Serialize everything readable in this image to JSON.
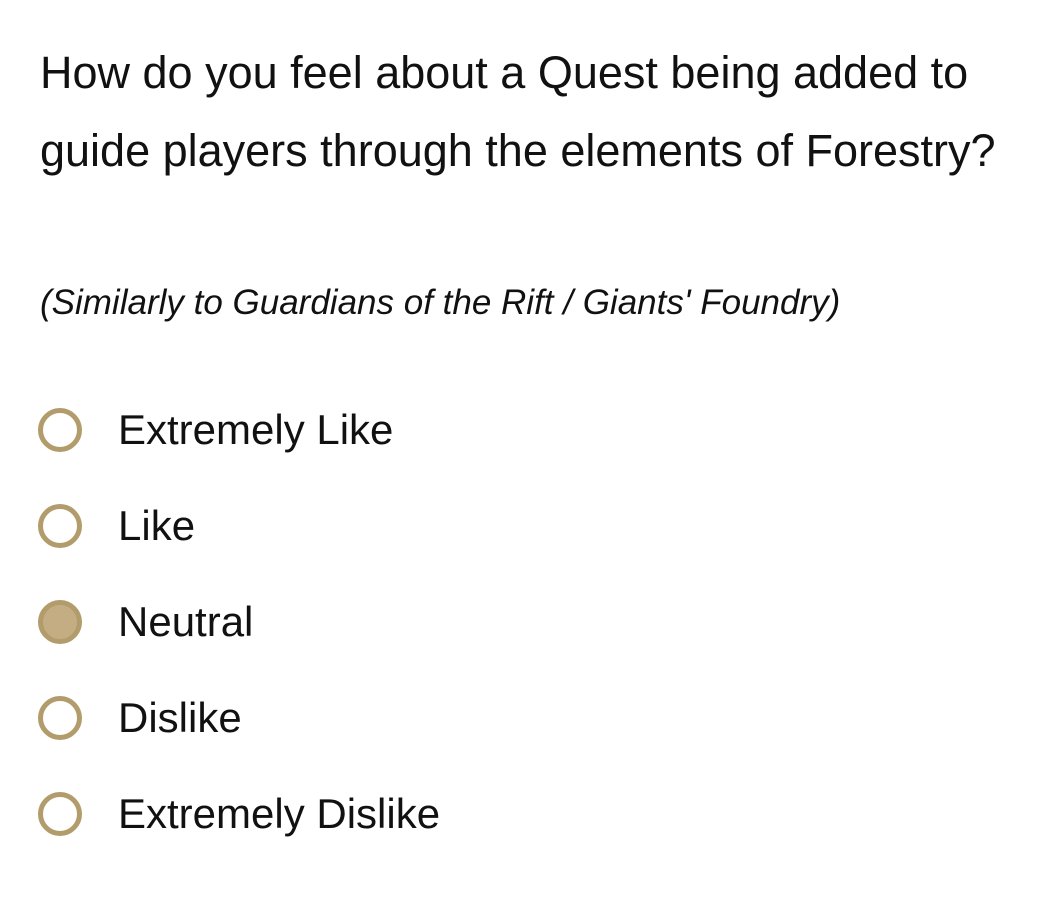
{
  "question": "How do you feel about a Quest being added to guide players through the elements of Forestry?",
  "subtitle": "(Similarly to Guardians of the Rift / Giants' Foundry)",
  "accent_color": "#b39c6b",
  "selected_fill": "#c4ad83",
  "options": [
    {
      "label": "Extremely Like",
      "selected": false
    },
    {
      "label": "Like",
      "selected": false
    },
    {
      "label": "Neutral",
      "selected": true
    },
    {
      "label": "Dislike",
      "selected": false
    },
    {
      "label": "Extremely Dislike",
      "selected": false
    }
  ]
}
